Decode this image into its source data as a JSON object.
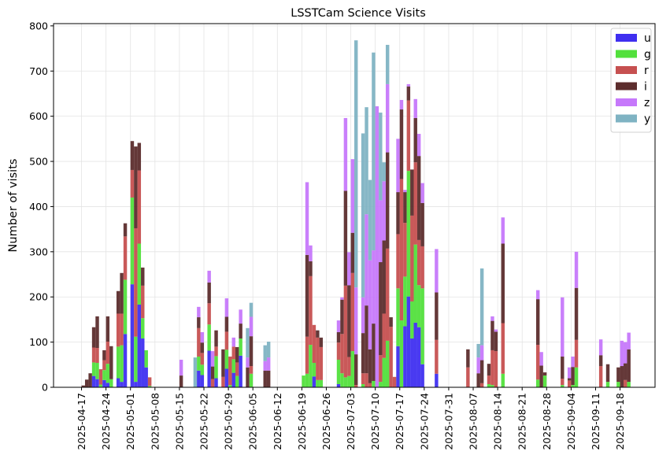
{
  "chart_data": {
    "type": "bar",
    "stacked": true,
    "title": "LSSTCam Science Visits",
    "xlabel": "",
    "ylabel": "Number of visits",
    "ylim": [
      0,
      805
    ],
    "yticks": [
      0,
      100,
      200,
      300,
      400,
      500,
      600,
      700,
      800
    ],
    "xrange": [
      "2025-04-09",
      "2025-09-28"
    ],
    "xticks": [
      "2025-04-17",
      "2025-04-24",
      "2025-05-01",
      "2025-05-08",
      "2025-05-15",
      "2025-05-22",
      "2025-05-29",
      "2025-06-05",
      "2025-06-12",
      "2025-06-19",
      "2025-06-26",
      "2025-07-03",
      "2025-07-10",
      "2025-07-17",
      "2025-07-24",
      "2025-07-31",
      "2025-08-07",
      "2025-08-14",
      "2025-08-21",
      "2025-08-28",
      "2025-09-04",
      "2025-09-11",
      "2025-09-18"
    ],
    "grid": true,
    "legend_placement": "top-right",
    "series": [
      {
        "name": "u",
        "color": "#3f2ff0"
      },
      {
        "name": "g",
        "color": "#52e03c"
      },
      {
        "name": "r",
        "color": "#c65050"
      },
      {
        "name": "i",
        "color": "#5c2d2d"
      },
      {
        "name": "z",
        "color": "#c678fb"
      },
      {
        "name": "y",
        "color": "#7fb3c3"
      }
    ],
    "bin_fields": [
      "date",
      "u",
      "g",
      "r",
      "i",
      "z",
      "y"
    ],
    "bins": [
      [
        "2025-04-17",
        0,
        0,
        0,
        4,
        0,
        0
      ],
      [
        "2025-04-18",
        0,
        0,
        0,
        17,
        0,
        0
      ],
      [
        "2025-04-19",
        0,
        0,
        0,
        31,
        0,
        0
      ],
      [
        "2025-04-20",
        25,
        30,
        33,
        45,
        0,
        0
      ],
      [
        "2025-04-21",
        18,
        36,
        33,
        70,
        0,
        0
      ],
      [
        "2025-04-22",
        0,
        6,
        34,
        0,
        0,
        0
      ],
      [
        "2025-04-23",
        16,
        22,
        22,
        22,
        0,
        0
      ],
      [
        "2025-04-24",
        10,
        42,
        49,
        56,
        0,
        0
      ],
      [
        "2025-04-25",
        0,
        18,
        0,
        73,
        0,
        0
      ],
      [
        "2025-04-27",
        20,
        70,
        73,
        50,
        0,
        0
      ],
      [
        "2025-04-28",
        12,
        81,
        70,
        90,
        0,
        0
      ],
      [
        "2025-04-29",
        118,
        120,
        96,
        29,
        0,
        0
      ],
      [
        "2025-05-01",
        228,
        192,
        61,
        64,
        0,
        0
      ],
      [
        "2025-05-02",
        12,
        100,
        240,
        181,
        0,
        0
      ],
      [
        "2025-05-03",
        183,
        135,
        162,
        61,
        0,
        0
      ],
      [
        "2025-05-04",
        108,
        45,
        72,
        40,
        0,
        0
      ],
      [
        "2025-05-05",
        44,
        38,
        0,
        0,
        0,
        0
      ],
      [
        "2025-05-06",
        0,
        3,
        19,
        0,
        0,
        0
      ],
      [
        "2025-05-15",
        0,
        0,
        0,
        26,
        35,
        0
      ],
      [
        "2025-05-19",
        0,
        0,
        0,
        0,
        0,
        66
      ],
      [
        "2025-05-20",
        37,
        31,
        63,
        24,
        23,
        0
      ],
      [
        "2025-05-21",
        27,
        23,
        26,
        23,
        23,
        0
      ],
      [
        "2025-05-23",
        81,
        58,
        47,
        46,
        26,
        0
      ],
      [
        "2025-05-24",
        0,
        0,
        18,
        28,
        34,
        0
      ],
      [
        "2025-05-25",
        20,
        49,
        21,
        36,
        0,
        0
      ],
      [
        "2025-05-27",
        0,
        0,
        23,
        61,
        0,
        0
      ],
      [
        "2025-05-28",
        41,
        42,
        40,
        33,
        41,
        0
      ],
      [
        "2025-05-29",
        0,
        5,
        63,
        0,
        0,
        0
      ],
      [
        "2025-05-30",
        32,
        30,
        28,
        0,
        20,
        0
      ],
      [
        "2025-05-31",
        0,
        25,
        30,
        34,
        0,
        0
      ],
      [
        "2025-06-01",
        70,
        38,
        0,
        33,
        31,
        0
      ],
      [
        "2025-06-03",
        0,
        0,
        0,
        44,
        22,
        65
      ],
      [
        "2025-06-04",
        0,
        30,
        17,
        66,
        43,
        31
      ],
      [
        "2025-06-08",
        0,
        0,
        0,
        37,
        21,
        35
      ],
      [
        "2025-06-09",
        0,
        0,
        0,
        37,
        29,
        35
      ],
      [
        "2025-06-19",
        0,
        26,
        0,
        0,
        0,
        0
      ],
      [
        "2025-06-20",
        0,
        30,
        82,
        181,
        161,
        0
      ],
      [
        "2025-06-21",
        0,
        94,
        152,
        33,
        35,
        0
      ],
      [
        "2025-06-22",
        24,
        30,
        84,
        0,
        0,
        0
      ],
      [
        "2025-06-23",
        0,
        16,
        94,
        16,
        0,
        0
      ],
      [
        "2025-06-24",
        0,
        16,
        73,
        21,
        0,
        0
      ],
      [
        "2025-06-29",
        7,
        54,
        38,
        23,
        26,
        0
      ],
      [
        "2025-06-30",
        0,
        31,
        87,
        76,
        5,
        0
      ],
      [
        "2025-07-01",
        0,
        22,
        203,
        210,
        161,
        0
      ],
      [
        "2025-07-02",
        0,
        25,
        42,
        159,
        73,
        0
      ],
      [
        "2025-07-03",
        0,
        80,
        173,
        89,
        163,
        0
      ],
      [
        "2025-07-04",
        0,
        0,
        5,
        68,
        148,
        547
      ],
      [
        "2025-07-06",
        0,
        7,
        24,
        89,
        79,
        363
      ],
      [
        "2025-07-07",
        0,
        0,
        31,
        150,
        202,
        237
      ],
      [
        "2025-07-08",
        0,
        0,
        9,
        75,
        197,
        178
      ],
      [
        "2025-07-09",
        0,
        14,
        0,
        127,
        162,
        438
      ],
      [
        "2025-07-10",
        0,
        0,
        0,
        0,
        622,
        0
      ],
      [
        "2025-07-11",
        0,
        12,
        59,
        206,
        137,
        194
      ],
      [
        "2025-07-12",
        0,
        65,
        98,
        162,
        131,
        42
      ],
      [
        "2025-07-13",
        0,
        103,
        204,
        213,
        151,
        87
      ],
      [
        "2025-07-14",
        0,
        0,
        134,
        21,
        0,
        0
      ],
      [
        "2025-07-15",
        0,
        0,
        23,
        0,
        0,
        0
      ],
      [
        "2025-07-16",
        91,
        128,
        120,
        93,
        118,
        0
      ],
      [
        "2025-07-17",
        0,
        148,
        313,
        154,
        21,
        0
      ],
      [
        "2025-07-18",
        135,
        110,
        119,
        68,
        5,
        0
      ],
      [
        "2025-07-19",
        201,
        278,
        156,
        31,
        5,
        0
      ],
      [
        "2025-07-20",
        108,
        82,
        190,
        102,
        0,
        0
      ],
      [
        "2025-07-21",
        143,
        173,
        182,
        98,
        42,
        0
      ],
      [
        "2025-07-22",
        133,
        93,
        100,
        186,
        49,
        0
      ],
      [
        "2025-07-23",
        51,
        168,
        93,
        96,
        44,
        0
      ],
      [
        "2025-07-27",
        30,
        0,
        75,
        105,
        96,
        0
      ],
      [
        "2025-08-05",
        0,
        0,
        44,
        40,
        0,
        0
      ],
      [
        "2025-08-08",
        0,
        0,
        0,
        31,
        35,
        30
      ],
      [
        "2025-08-09",
        0,
        0,
        9,
        51,
        33,
        170
      ],
      [
        "2025-08-11",
        0,
        7,
        19,
        26,
        0,
        0
      ],
      [
        "2025-08-12",
        0,
        5,
        77,
        65,
        10,
        0
      ],
      [
        "2025-08-13",
        0,
        0,
        80,
        43,
        5,
        0
      ],
      [
        "2025-08-15",
        0,
        30,
        112,
        176,
        58,
        0
      ],
      [
        "2025-08-25",
        0,
        17,
        77,
        101,
        20,
        0
      ],
      [
        "2025-08-26",
        0,
        0,
        0,
        48,
        30,
        0
      ],
      [
        "2025-08-27",
        0,
        26,
        0,
        7,
        0,
        0
      ],
      [
        "2025-09-01",
        0,
        5,
        14,
        49,
        131,
        0
      ],
      [
        "2025-09-03",
        0,
        0,
        15,
        5,
        24,
        0
      ],
      [
        "2025-09-04",
        0,
        5,
        0,
        40,
        23,
        0
      ],
      [
        "2025-09-05",
        0,
        44,
        61,
        115,
        80,
        0
      ],
      [
        "2025-09-12",
        0,
        0,
        47,
        24,
        35,
        0
      ],
      [
        "2025-09-14",
        0,
        12,
        0,
        39,
        0,
        0
      ],
      [
        "2025-09-17",
        0,
        12,
        0,
        32,
        0,
        0
      ],
      [
        "2025-09-18",
        0,
        0,
        0,
        47,
        56,
        0
      ],
      [
        "2025-09-19",
        0,
        0,
        16,
        37,
        47,
        0
      ],
      [
        "2025-09-20",
        0,
        12,
        0,
        72,
        37,
        0
      ]
    ]
  }
}
